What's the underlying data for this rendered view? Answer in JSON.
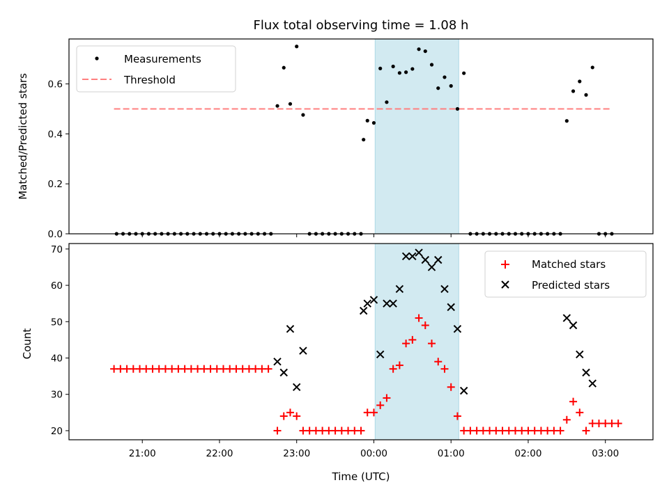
{
  "chart_data": [
    {
      "type": "scatter",
      "title": "Flux total observing time = 1.08 h",
      "xlabel": "",
      "ylabel": "Matched/Predicted stars",
      "ylim": [
        0,
        0.78
      ],
      "yticks": [
        "0.0",
        "0.2",
        "0.4",
        "0.6"
      ],
      "legend": {
        "placement": "top-left",
        "entries": [
          "Measurements",
          "Threshold"
        ]
      },
      "threshold": {
        "name": "Threshold",
        "value": 0.5,
        "x_start": "20:38",
        "x_end": "03:05",
        "color": "#ff7f7f"
      },
      "highlight": {
        "x_start": "00:01",
        "x_end": "01:06",
        "color": "#add8e6"
      },
      "series": [
        {
          "name": "Measurements",
          "color": "#000000",
          "points": [
            [
              "20:40",
              0
            ],
            [
              "20:45",
              0
            ],
            [
              "20:50",
              0
            ],
            [
              "20:55",
              0
            ],
            [
              "21:00",
              0
            ],
            [
              "21:05",
              0
            ],
            [
              "21:10",
              0
            ],
            [
              "21:15",
              0
            ],
            [
              "21:20",
              0
            ],
            [
              "21:25",
              0
            ],
            [
              "21:30",
              0
            ],
            [
              "21:35",
              0
            ],
            [
              "21:40",
              0
            ],
            [
              "21:45",
              0
            ],
            [
              "21:50",
              0
            ],
            [
              "21:55",
              0
            ],
            [
              "22:00",
              0
            ],
            [
              "22:05",
              0
            ],
            [
              "22:10",
              0
            ],
            [
              "22:15",
              0
            ],
            [
              "22:20",
              0
            ],
            [
              "22:25",
              0
            ],
            [
              "22:30",
              0
            ],
            [
              "22:35",
              0
            ],
            [
              "22:40",
              0
            ],
            [
              "22:45",
              0.512
            ],
            [
              "22:50",
              0.665
            ],
            [
              "22:55",
              0.52
            ],
            [
              "23:00",
              0.75
            ],
            [
              "23:05",
              0.476
            ],
            [
              "23:10",
              0
            ],
            [
              "23:15",
              0
            ],
            [
              "23:20",
              0
            ],
            [
              "23:25",
              0
            ],
            [
              "23:30",
              0
            ],
            [
              "23:35",
              0
            ],
            [
              "23:40",
              0
            ],
            [
              "23:45",
              0
            ],
            [
              "23:50",
              0
            ],
            [
              "23:52",
              0.377
            ],
            [
              "23:55",
              0.453
            ],
            [
              "24:00",
              0.444
            ],
            [
              "24:05",
              0.662
            ],
            [
              "24:10",
              0.527
            ],
            [
              "24:15",
              0.67
            ],
            [
              "24:20",
              0.644
            ],
            [
              "24:25",
              0.647
            ],
            [
              "24:30",
              0.66
            ],
            [
              "24:35",
              0.739
            ],
            [
              "24:40",
              0.731
            ],
            [
              "24:45",
              0.677
            ],
            [
              "24:50",
              0.583
            ],
            [
              "24:55",
              0.627
            ],
            [
              "25:00",
              0.592
            ],
            [
              "25:05",
              0.5
            ],
            [
              "25:10",
              0.643
            ],
            [
              "25:15",
              0
            ],
            [
              "25:20",
              0
            ],
            [
              "25:25",
              0
            ],
            [
              "25:30",
              0
            ],
            [
              "25:35",
              0
            ],
            [
              "25:40",
              0
            ],
            [
              "25:45",
              0
            ],
            [
              "25:50",
              0
            ],
            [
              "25:55",
              0
            ],
            [
              "26:00",
              0
            ],
            [
              "26:05",
              0
            ],
            [
              "26:10",
              0
            ],
            [
              "26:15",
              0
            ],
            [
              "26:20",
              0
            ],
            [
              "26:25",
              0
            ],
            [
              "26:30",
              0.452
            ],
            [
              "26:35",
              0.571
            ],
            [
              "26:40",
              0.61
            ],
            [
              "26:45",
              0.556
            ],
            [
              "26:50",
              0.666
            ],
            [
              "26:55",
              0
            ],
            [
              "27:00",
              0
            ],
            [
              "27:05",
              0
            ]
          ]
        }
      ]
    },
    {
      "type": "scatter",
      "xlabel": "Time (UTC)",
      "ylabel": "Count",
      "ylim": [
        17.5,
        71.5
      ],
      "yticks": [
        "20",
        "30",
        "40",
        "50",
        "60",
        "70"
      ],
      "xticks": [
        "21:00",
        "22:00",
        "23:00",
        "00:00",
        "01:00",
        "02:00",
        "03:00"
      ],
      "legend": {
        "placement": "top-right",
        "entries": [
          "Matched stars",
          "Predicted stars"
        ]
      },
      "highlight": {
        "x_start": "00:01",
        "x_end": "01:06",
        "color": "#add8e6"
      },
      "series": [
        {
          "name": "Matched stars",
          "marker": "+",
          "color": "#ff0000",
          "points": [
            [
              "20:38",
              37
            ],
            [
              "20:43",
              37
            ],
            [
              "20:48",
              37
            ],
            [
              "20:53",
              37
            ],
            [
              "20:58",
              37
            ],
            [
              "21:03",
              37
            ],
            [
              "21:08",
              37
            ],
            [
              "21:13",
              37
            ],
            [
              "21:18",
              37
            ],
            [
              "21:23",
              37
            ],
            [
              "21:28",
              37
            ],
            [
              "21:33",
              37
            ],
            [
              "21:38",
              37
            ],
            [
              "21:43",
              37
            ],
            [
              "21:48",
              37
            ],
            [
              "21:53",
              37
            ],
            [
              "21:58",
              37
            ],
            [
              "22:03",
              37
            ],
            [
              "22:08",
              37
            ],
            [
              "22:13",
              37
            ],
            [
              "22:18",
              37
            ],
            [
              "22:23",
              37
            ],
            [
              "22:28",
              37
            ],
            [
              "22:33",
              37
            ],
            [
              "22:38",
              37
            ],
            [
              "22:45",
              20
            ],
            [
              "22:50",
              24
            ],
            [
              "22:55",
              25
            ],
            [
              "23:00",
              24
            ],
            [
              "23:05",
              20
            ],
            [
              "23:10",
              20
            ],
            [
              "23:15",
              20
            ],
            [
              "23:20",
              20
            ],
            [
              "23:25",
              20
            ],
            [
              "23:30",
              20
            ],
            [
              "23:35",
              20
            ],
            [
              "23:40",
              20
            ],
            [
              "23:45",
              20
            ],
            [
              "23:50",
              20
            ],
            [
              "23:55",
              25
            ],
            [
              "24:00",
              25
            ],
            [
              "24:05",
              27
            ],
            [
              "24:10",
              29
            ],
            [
              "24:15",
              37
            ],
            [
              "24:20",
              38
            ],
            [
              "24:25",
              44
            ],
            [
              "24:30",
              45
            ],
            [
              "24:35",
              51
            ],
            [
              "24:40",
              49
            ],
            [
              "24:45",
              44
            ],
            [
              "24:50",
              39
            ],
            [
              "24:55",
              37
            ],
            [
              "25:00",
              32
            ],
            [
              "25:05",
              24
            ],
            [
              "25:10",
              20
            ],
            [
              "25:15",
              20
            ],
            [
              "25:20",
              20
            ],
            [
              "25:25",
              20
            ],
            [
              "25:30",
              20
            ],
            [
              "25:35",
              20
            ],
            [
              "25:40",
              20
            ],
            [
              "25:45",
              20
            ],
            [
              "25:50",
              20
            ],
            [
              "25:55",
              20
            ],
            [
              "26:00",
              20
            ],
            [
              "26:05",
              20
            ],
            [
              "26:10",
              20
            ],
            [
              "26:15",
              20
            ],
            [
              "26:20",
              20
            ],
            [
              "26:25",
              20
            ],
            [
              "26:30",
              23
            ],
            [
              "26:35",
              28
            ],
            [
              "26:40",
              25
            ],
            [
              "26:45",
              20
            ],
            [
              "26:50",
              22
            ],
            [
              "26:55",
              22
            ],
            [
              "27:00",
              22
            ],
            [
              "27:05",
              22
            ],
            [
              "27:10",
              22
            ]
          ]
        },
        {
          "name": "Predicted stars",
          "marker": "x",
          "color": "#000000",
          "points": [
            [
              "22:45",
              39
            ],
            [
              "22:50",
              36
            ],
            [
              "22:55",
              48
            ],
            [
              "23:00",
              32
            ],
            [
              "23:05",
              42
            ],
            [
              "23:52",
              53
            ],
            [
              "23:55",
              55
            ],
            [
              "24:00",
              56
            ],
            [
              "24:05",
              41
            ],
            [
              "24:10",
              55
            ],
            [
              "24:15",
              55
            ],
            [
              "24:20",
              59
            ],
            [
              "24:25",
              68
            ],
            [
              "24:30",
              68
            ],
            [
              "24:35",
              69
            ],
            [
              "24:40",
              67
            ],
            [
              "24:45",
              65
            ],
            [
              "24:50",
              67
            ],
            [
              "24:55",
              59
            ],
            [
              "25:00",
              54
            ],
            [
              "25:05",
              48
            ],
            [
              "25:10",
              31
            ],
            [
              "26:30",
              51
            ],
            [
              "26:35",
              49
            ],
            [
              "26:40",
              41
            ],
            [
              "26:45",
              36
            ],
            [
              "26:50",
              33
            ]
          ]
        }
      ]
    }
  ]
}
